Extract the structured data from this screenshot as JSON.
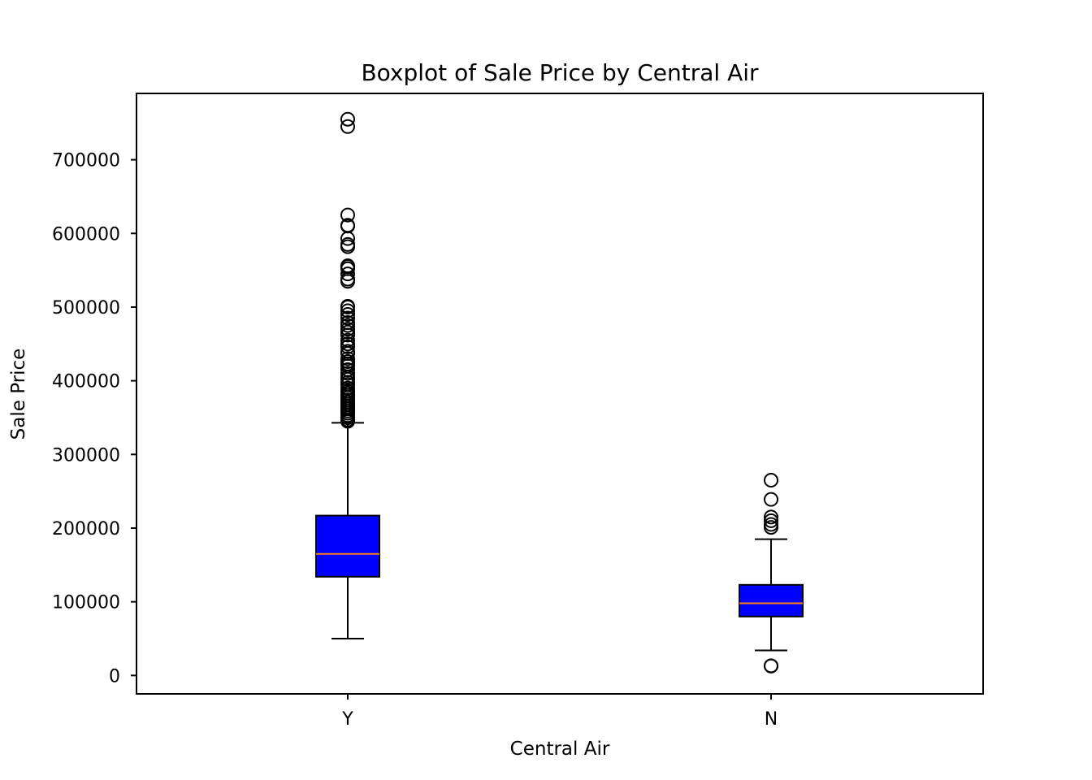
{
  "chart_data": {
    "type": "boxplot",
    "title": "Boxplot of Sale Price by Central Air",
    "xlabel": "Central Air",
    "ylabel": "Sale Price",
    "ylim": [
      -25000,
      790000
    ],
    "yticks": [
      0,
      100000,
      200000,
      300000,
      400000,
      500000,
      600000,
      700000
    ],
    "ytick_labels": [
      "0",
      "100000",
      "200000",
      "300000",
      "400000",
      "500000",
      "600000",
      "700000"
    ],
    "grid": false,
    "categories": [
      "Y",
      "N"
    ],
    "box_color": "#0000ff",
    "median_color": "#ff7f0e",
    "boxes": [
      {
        "category": "Y",
        "whisker_low": 50000,
        "q1": 134000,
        "median": 165000,
        "q3": 217000,
        "whisker_high": 343000,
        "outliers": [
          755000,
          745000,
          625000,
          611000,
          610000,
          593000,
          585000,
          582000,
          556000,
          555000,
          552000,
          545000,
          538000,
          535000,
          501000,
          500000,
          495000,
          490000,
          485000,
          479000,
          475000,
          470000,
          466000,
          462000,
          455000,
          450000,
          446000,
          440000,
          437000,
          430000,
          426000,
          423000,
          420000,
          415000,
          410000,
          405000,
          402000,
          398000,
          395000,
          390000,
          386000,
          383000,
          380000,
          377000,
          374000,
          371000,
          368000,
          365000,
          362000,
          359000,
          356000,
          353000,
          350000,
          347000,
          345000
        ]
      },
      {
        "category": "N",
        "whisker_low": 34000,
        "q1": 80000,
        "median": 98000,
        "q3": 123000,
        "whisker_high": 185000,
        "outliers": [
          265000,
          239000,
          215000,
          210000,
          205000,
          201000,
          13100,
          12789
        ]
      }
    ]
  }
}
